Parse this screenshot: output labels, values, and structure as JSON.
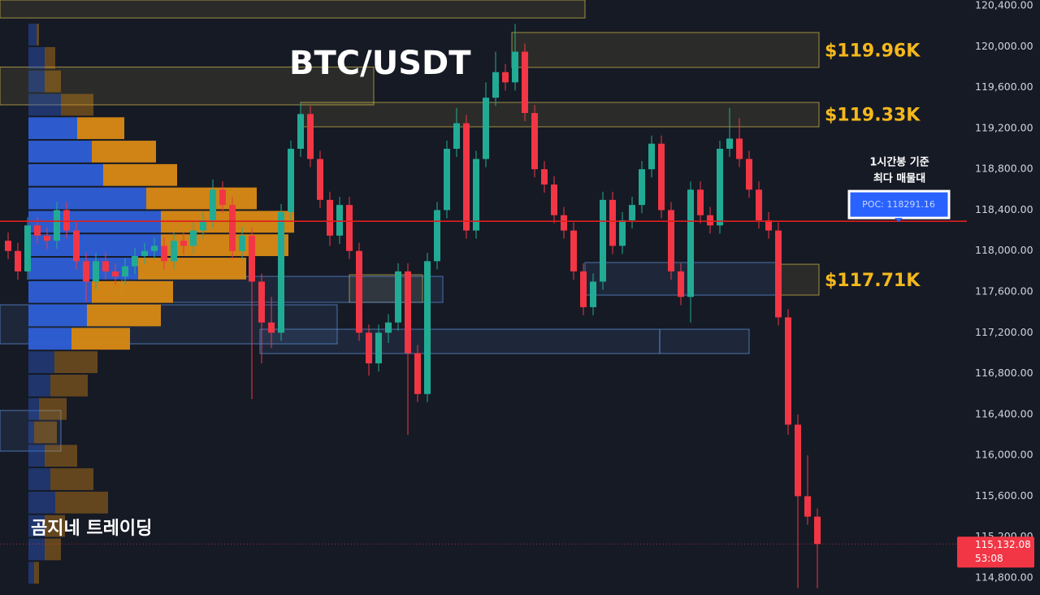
{
  "chart_data": {
    "type": "candlestick",
    "title": "BTC/USDT",
    "watermark": "곰지네 트레이딩",
    "ylim": [
      114633,
      120456
    ],
    "yticks": [
      {
        "value": 114800,
        "label": "114,800.00"
      },
      {
        "value": 115200,
        "label": "115,200.00"
      },
      {
        "value": 115600,
        "label": "115,600.00"
      },
      {
        "value": 116000,
        "label": "116,000.00"
      },
      {
        "value": 116400,
        "label": "116,400.00"
      },
      {
        "value": 116800,
        "label": "116,800.00"
      },
      {
        "value": 117200,
        "label": "117,200.00"
      },
      {
        "value": 117600,
        "label": "117,600.00"
      },
      {
        "value": 118000,
        "label": "118,000.00"
      },
      {
        "value": 118400,
        "label": "118,400.00"
      },
      {
        "value": 118800,
        "label": "118,800.00"
      },
      {
        "value": 119200,
        "label": "119,200.00"
      },
      {
        "value": 119600,
        "label": "119,600.00"
      },
      {
        "value": 120000,
        "label": "120,000.00"
      },
      {
        "value": 120400,
        "label": "120,400.00"
      }
    ],
    "grid": false,
    "up_color": "#22ab94",
    "down_color": "#f23645",
    "open": [
      118100,
      118000,
      117800,
      118250,
      118150,
      118100,
      118400,
      118200,
      117900,
      117700,
      117900,
      117800,
      117750,
      117850,
      117950,
      118000,
      118050,
      117900,
      118100,
      118050,
      118200,
      118300,
      118600,
      118450,
      118000,
      118150,
      117700,
      117300,
      117200,
      118380,
      119000,
      119340,
      118900,
      118500,
      118150,
      118450,
      118000,
      117200,
      116900,
      117200,
      117300,
      117800,
      117000,
      116600,
      117900,
      118400,
      119000,
      119250,
      118200,
      118900,
      119500,
      119750,
      119650,
      119950,
      119350,
      118800,
      118650,
      118350,
      118200,
      117800,
      117450,
      117700,
      118500,
      118050,
      118300,
      118450,
      118800,
      119050,
      118400,
      117800,
      117550,
      118600,
      118350,
      118250,
      119000,
      119100,
      118900,
      118600,
      118300,
      118200,
      117350,
      116300,
      115600,
      115400
    ],
    "high": [
      118180,
      118080,
      118330,
      118330,
      118230,
      118480,
      118480,
      118280,
      117980,
      117980,
      117980,
      117880,
      117930,
      118030,
      118080,
      118130,
      118130,
      118180,
      118180,
      118280,
      118380,
      118700,
      118680,
      118530,
      118230,
      118230,
      117780,
      117550,
      118460,
      119080,
      119450,
      119420,
      118980,
      118580,
      118530,
      118530,
      118080,
      117280,
      117280,
      117380,
      117880,
      117880,
      117080,
      117980,
      118480,
      119080,
      119400,
      119330,
      118980,
      119650,
      119950,
      119830,
      120220,
      120030,
      119430,
      118880,
      118730,
      118430,
      118280,
      117880,
      117780,
      118580,
      118580,
      118380,
      118530,
      118880,
      119130,
      119130,
      118480,
      117880,
      118680,
      118680,
      118430,
      119080,
      119400,
      119300,
      118980,
      118680,
      118380,
      118280,
      117430,
      116400,
      116000,
      115480
    ],
    "low": [
      117920,
      117720,
      117720,
      118070,
      118020,
      118020,
      118120,
      117820,
      117500,
      117620,
      117720,
      117670,
      117670,
      117770,
      117870,
      117920,
      117820,
      117820,
      117970,
      117970,
      118120,
      118220,
      118370,
      117920,
      117920,
      116550,
      116900,
      117050,
      117120,
      118300,
      118920,
      118820,
      118420,
      118050,
      118070,
      117920,
      117120,
      116780,
      116820,
      117100,
      117220,
      116200,
      116520,
      116520,
      117820,
      118320,
      118920,
      118120,
      118120,
      118820,
      119420,
      119570,
      119570,
      119270,
      118720,
      118570,
      118270,
      118120,
      117720,
      117370,
      117370,
      117620,
      117970,
      117970,
      118220,
      118370,
      118720,
      118320,
      117720,
      117470,
      117300,
      118270,
      118170,
      118170,
      118920,
      118820,
      118520,
      118220,
      118120,
      117270,
      116200,
      114700,
      115320,
      114700
    ],
    "close": [
      118000,
      117800,
      118250,
      118150,
      118100,
      118400,
      118200,
      117900,
      117700,
      117900,
      117800,
      117750,
      117850,
      117950,
      118000,
      118050,
      117900,
      118100,
      118050,
      118200,
      118300,
      118600,
      118450,
      118000,
      118150,
      117700,
      117300,
      117200,
      118380,
      119000,
      119340,
      118900,
      118500,
      118150,
      118450,
      118000,
      117200,
      116900,
      117200,
      117300,
      117800,
      117000,
      116600,
      117900,
      118400,
      119000,
      119250,
      118200,
      118900,
      119500,
      119750,
      119650,
      119950,
      119350,
      118800,
      118650,
      118350,
      118200,
      117800,
      117450,
      117700,
      118500,
      118050,
      118300,
      118450,
      118800,
      119050,
      118400,
      117800,
      117550,
      118600,
      118350,
      118250,
      119000,
      119100,
      118900,
      118600,
      118300,
      118200,
      117350,
      116300,
      115600,
      115400,
      115132.08
    ],
    "profile": {
      "bins": [
        114736,
        114965,
        115194,
        115423,
        115652,
        115881,
        116110,
        116339,
        116568,
        116797,
        117026,
        117255,
        117484,
        117713,
        117942,
        118171,
        118400,
        118629,
        118858,
        119087,
        119316,
        119545,
        119774,
        120003,
        120232
      ],
      "series": [
        {
          "color": "#2e5fd6",
          "values": [
            7,
            20,
            20,
            33,
            27,
            20,
            7,
            13,
            27,
            32,
            53,
            72,
            78,
            135,
            163,
            163,
            145,
            92,
            78,
            60,
            40,
            20,
            20,
            10
          ]
        },
        {
          "color": "#d98a14",
          "values": [
            6,
            20,
            25,
            65,
            53,
            40,
            28,
            34,
            46,
            53,
            72,
            91,
            100,
            133,
            157,
            164,
            136,
            91,
            79,
            58,
            40,
            20,
            13,
            3
          ]
        }
      ],
      "value_area": [
        117026,
        119316
      ]
    },
    "zones": [
      {
        "low": 120280,
        "high": 120456,
        "color": "#c9b24a"
      },
      {
        "low": 119796,
        "high": 120138,
        "color": "#c9b24a"
      },
      {
        "low": 119430,
        "high": 119800,
        "color": "#c9b24a"
      },
      {
        "low": 119215,
        "high": 119454,
        "color": "#c9b24a"
      },
      {
        "low": 117568,
        "high": 117870,
        "color": "#c9b24a"
      },
      {
        "low": 117497,
        "high": 117767,
        "color": "#c9b24a"
      },
      {
        "low": 117497,
        "high": 117751,
        "color": "#5b8fd6"
      },
      {
        "low": 117568,
        "high": 117887,
        "color": "#5b8fd6"
      },
      {
        "low": 117091,
        "high": 117473,
        "color": "#5b8fd6"
      },
      {
        "low": 116996,
        "high": 117234,
        "color": "#5b8fd6"
      },
      {
        "low": 116996,
        "high": 117234,
        "color": "#5b8fd6"
      },
      {
        "low": 116041,
        "high": 116439,
        "color": "#5b8fd6"
      }
    ],
    "levels": [
      {
        "value": 119960,
        "label": "$119.96K"
      },
      {
        "value": 119330,
        "label": "$119.33K"
      },
      {
        "value": 117710,
        "label": "$117.71K"
      }
    ],
    "poc": {
      "value": 118291.16,
      "label": "POC: 118291.16",
      "color": "#e01e1e"
    },
    "poc_note": [
      "1시간봉 기준",
      "최다 매물대"
    ],
    "price_tag": {
      "value": 115132.08,
      "label": "115,132.08"
    },
    "countdown": "53:08"
  }
}
